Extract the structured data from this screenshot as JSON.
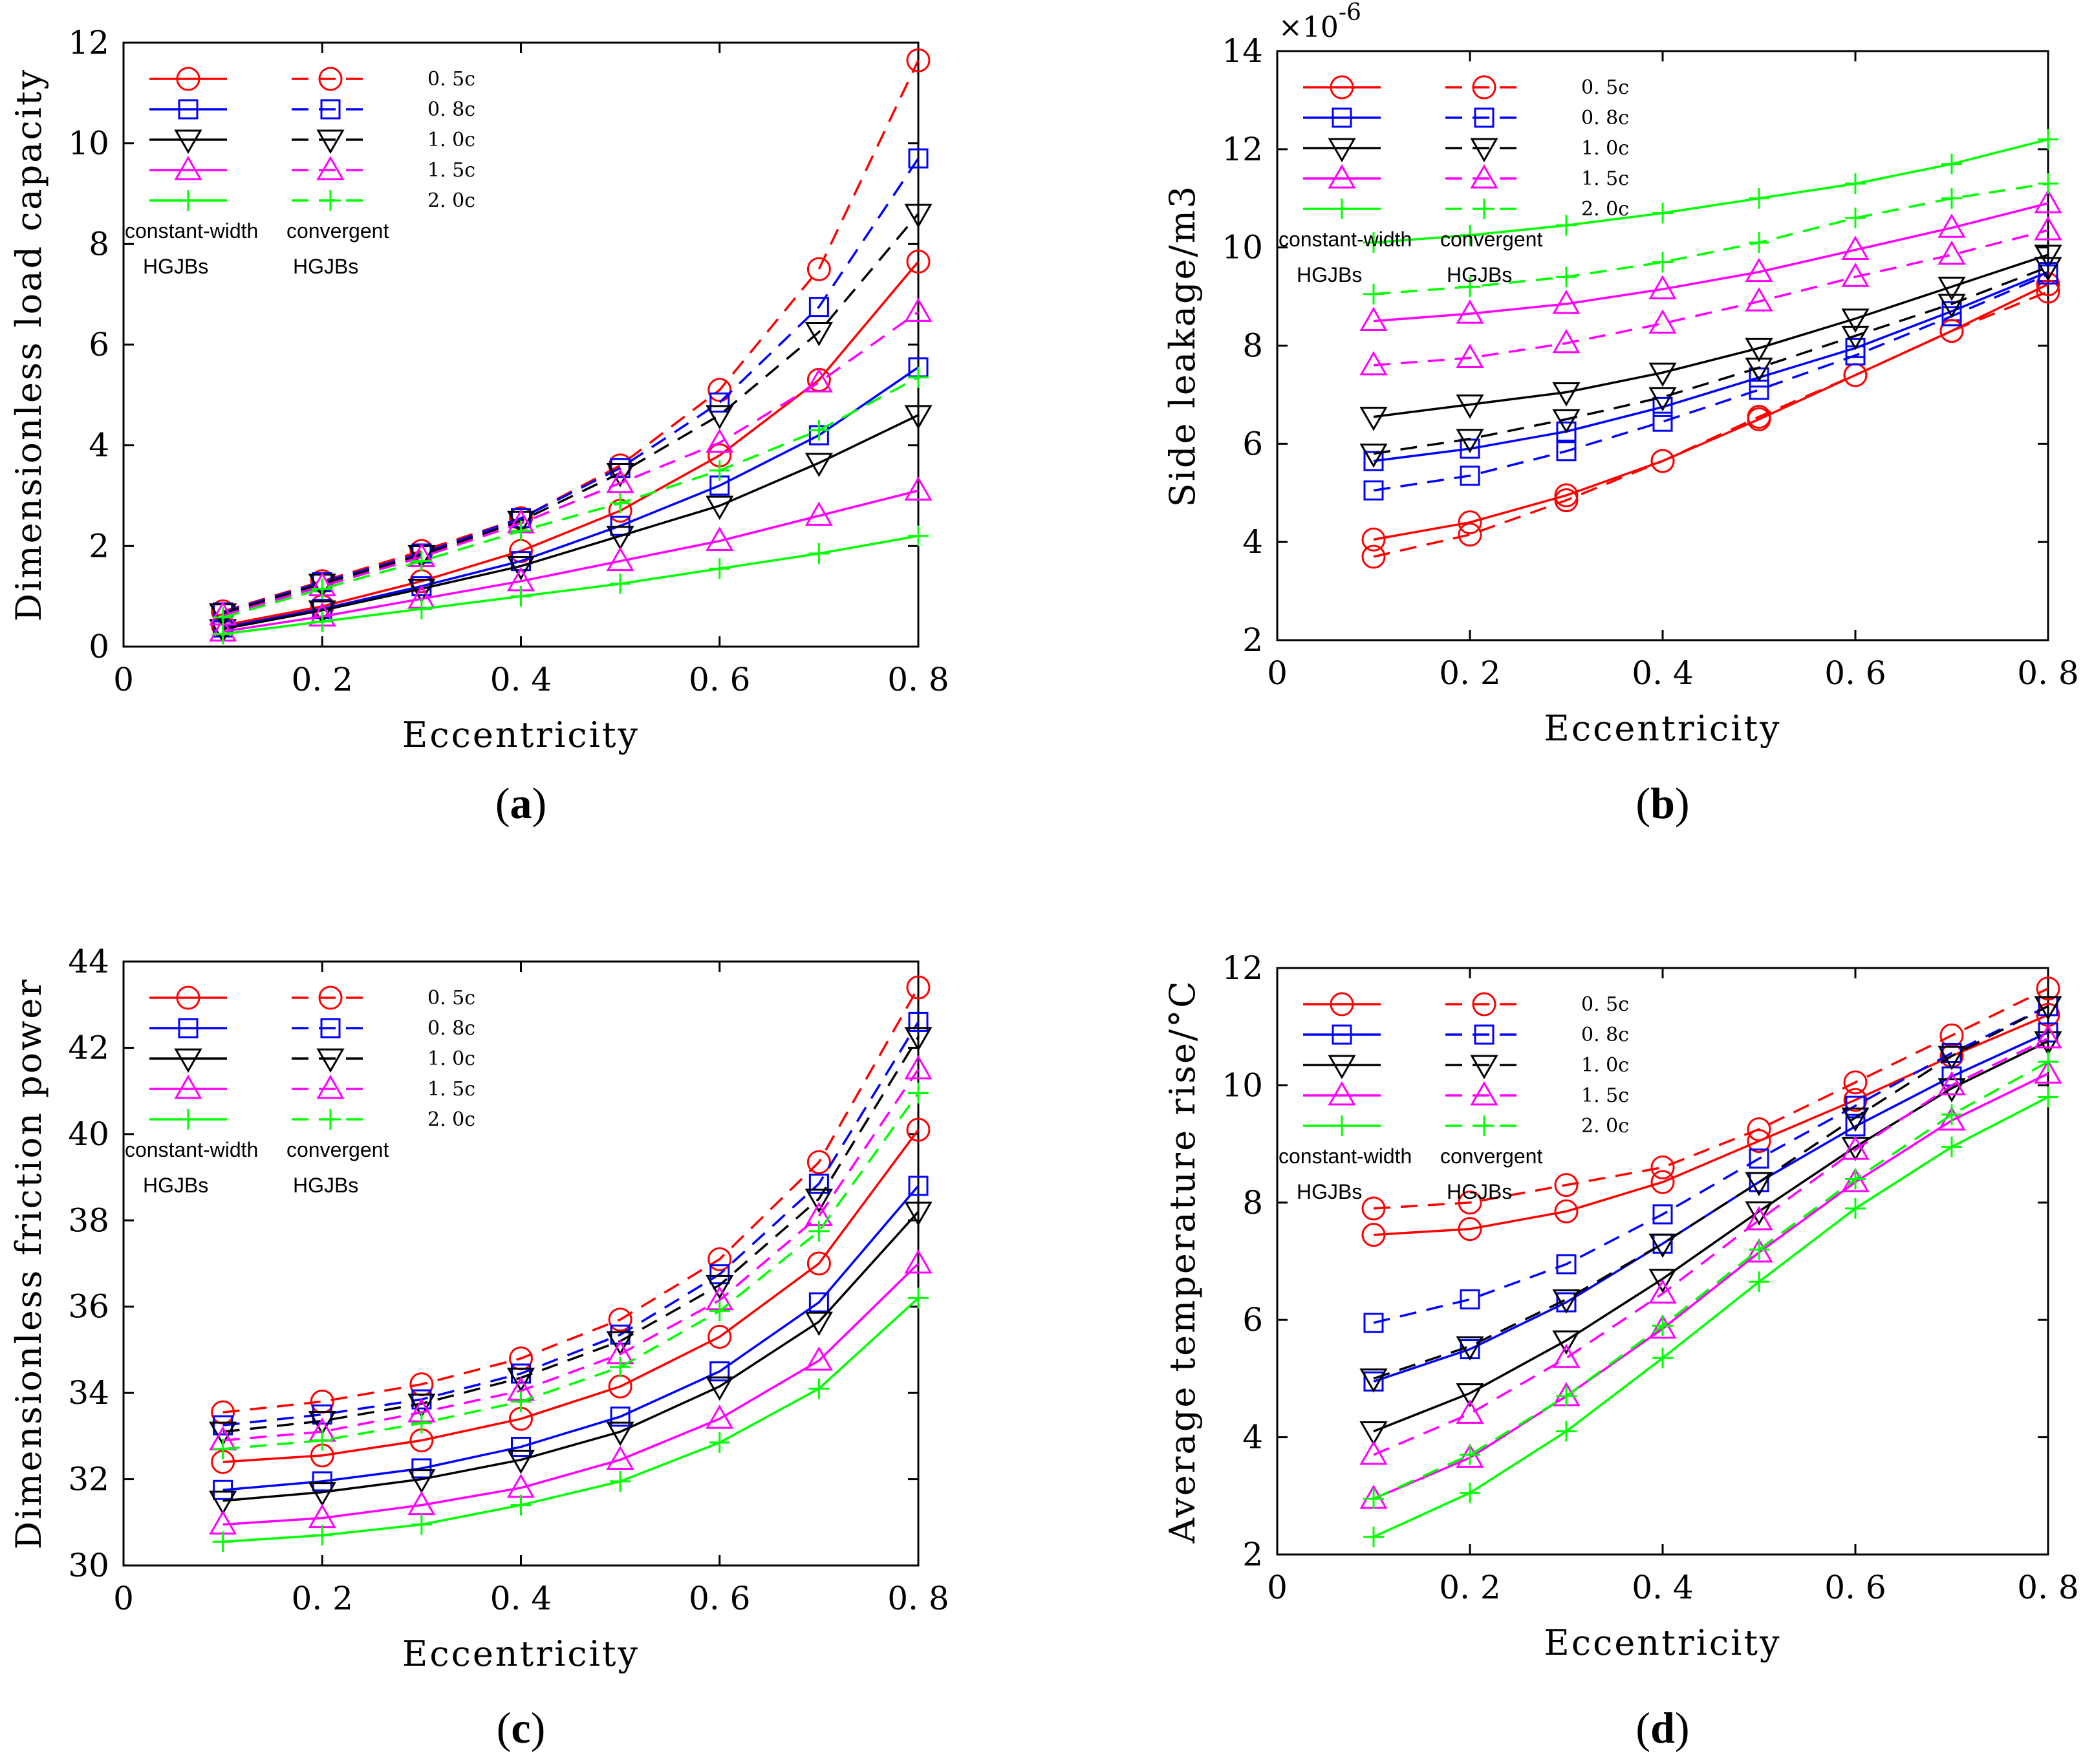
{
  "figure": {
    "legend_labels": [
      "0. 5c",
      "0. 8c",
      "1. 0c",
      "1. 5c",
      "2. 0c"
    ],
    "legend_note": {
      "left_top": "constant-width",
      "right_top": "convergent",
      "left_bottom": "HGJBs",
      "right_bottom": "HGJBs"
    },
    "series_colors": [
      "#ff0000",
      "#0000ff",
      "#000000",
      "#ff00ff",
      "#00ff00"
    ],
    "series_markers": [
      "circle",
      "square",
      "triangle-down",
      "triangle-up",
      "plus"
    ],
    "line_styles": {
      "constant_width": "solid",
      "convergent": "dashed"
    }
  },
  "chart_data": [
    {
      "type": "line",
      "caption": "(a)",
      "caption_letter": "a",
      "xlabel": "Eccentricity",
      "ylabel": "Dimensionless load capacity",
      "xlim": [
        0,
        0.8
      ],
      "ylim": [
        0,
        12
      ],
      "xticks": [
        0,
        0.2,
        0.4,
        0.6,
        0.8
      ],
      "xtick_labels": [
        "0",
        "0. 2",
        "0. 4",
        "0. 6",
        "0. 8"
      ],
      "yticks": [
        0,
        2,
        4,
        6,
        8,
        10,
        12
      ],
      "ytick_labels": [
        "0",
        "2",
        "4",
        "6",
        "8",
        "10",
        "12"
      ],
      "exponent_label": "",
      "x": [
        0.1,
        0.2,
        0.3,
        0.4,
        0.5,
        0.6,
        0.7,
        0.8
      ],
      "series": [
        {
          "name": "0. 5c constant-width",
          "values": [
            0.42,
            0.8,
            1.3,
            1.9,
            2.7,
            3.8,
            5.3,
            7.65
          ]
        },
        {
          "name": "0. 8c constant-width",
          "values": [
            0.38,
            0.75,
            1.2,
            1.7,
            2.4,
            3.2,
            4.2,
            5.55
          ]
        },
        {
          "name": "1. 0c constant-width",
          "values": [
            0.35,
            0.72,
            1.15,
            1.6,
            2.2,
            2.8,
            3.65,
            4.6
          ]
        },
        {
          "name": "1. 5c constant-width",
          "values": [
            0.3,
            0.6,
            0.95,
            1.3,
            1.7,
            2.1,
            2.6,
            3.1
          ]
        },
        {
          "name": "2. 0c constant-width",
          "values": [
            0.25,
            0.5,
            0.75,
            1.0,
            1.25,
            1.55,
            1.85,
            2.2
          ]
        },
        {
          "name": "0. 5c convergent",
          "values": [
            0.7,
            1.3,
            1.9,
            2.55,
            3.6,
            5.1,
            7.5,
            11.65
          ]
        },
        {
          "name": "0. 8c convergent",
          "values": [
            0.68,
            1.28,
            1.85,
            2.55,
            3.55,
            4.85,
            6.75,
            9.7
          ]
        },
        {
          "name": "1. 0c convergent",
          "values": [
            0.66,
            1.25,
            1.82,
            2.5,
            3.45,
            4.6,
            6.25,
            8.6
          ]
        },
        {
          "name": "1. 5c convergent",
          "values": [
            0.62,
            1.2,
            1.78,
            2.45,
            3.25,
            4.05,
            5.25,
            6.65
          ]
        },
        {
          "name": "2. 0c convergent",
          "values": [
            0.58,
            1.15,
            1.7,
            2.3,
            2.85,
            3.5,
            4.3,
            5.35
          ]
        }
      ]
    },
    {
      "type": "line",
      "caption": "(b)",
      "caption_letter": "b",
      "xlabel": "Eccentricity",
      "ylabel": "Side leakage/m3",
      "xlim": [
        0,
        0.8
      ],
      "ylim": [
        2,
        14
      ],
      "xticks": [
        0,
        0.2,
        0.4,
        0.6,
        0.8
      ],
      "xtick_labels": [
        "0",
        "0. 2",
        "0. 4",
        "0. 6",
        "0. 8"
      ],
      "yticks": [
        2,
        4,
        6,
        8,
        10,
        12,
        14
      ],
      "ytick_labels": [
        "2",
        "4",
        "6",
        "8",
        "10",
        "12",
        "14"
      ],
      "exponent_label": "×10",
      "exponent_power": "-6",
      "x": [
        0.1,
        0.2,
        0.3,
        0.4,
        0.5,
        0.6,
        0.7,
        0.8
      ],
      "series": [
        {
          "name": "0. 5c constant-width",
          "values": [
            4.05,
            4.4,
            4.95,
            5.65,
            6.5,
            7.4,
            8.3,
            9.25
          ]
        },
        {
          "name": "0. 8c constant-width",
          "values": [
            5.65,
            5.9,
            6.25,
            6.75,
            7.35,
            7.95,
            8.7,
            9.5
          ]
        },
        {
          "name": "1. 0c constant-width",
          "values": [
            6.55,
            6.8,
            7.05,
            7.45,
            7.95,
            8.55,
            9.2,
            9.85
          ]
        },
        {
          "name": "1. 5c constant-width",
          "values": [
            8.5,
            8.65,
            8.85,
            9.15,
            9.5,
            9.95,
            10.4,
            10.9
          ]
        },
        {
          "name": "2. 0c constant-width",
          "values": [
            10.1,
            10.25,
            10.45,
            10.7,
            11.0,
            11.3,
            11.7,
            12.2
          ]
        },
        {
          "name": "0. 5c convergent",
          "values": [
            3.7,
            4.15,
            4.85,
            5.65,
            6.55,
            7.4,
            8.3,
            9.1
          ]
        },
        {
          "name": "0. 8c convergent",
          "values": [
            5.05,
            5.35,
            5.85,
            6.45,
            7.1,
            7.8,
            8.6,
            9.45
          ]
        },
        {
          "name": "1. 0c convergent",
          "values": [
            5.8,
            6.1,
            6.5,
            6.95,
            7.55,
            8.2,
            8.85,
            9.6
          ]
        },
        {
          "name": "1. 5c convergent",
          "values": [
            7.6,
            7.75,
            8.05,
            8.45,
            8.9,
            9.4,
            9.85,
            10.35
          ]
        },
        {
          "name": "2. 0c convergent",
          "values": [
            9.05,
            9.2,
            9.4,
            9.7,
            10.1,
            10.6,
            11.0,
            11.3
          ]
        }
      ]
    },
    {
      "type": "line",
      "caption": "(c)",
      "caption_letter": "c",
      "xlabel": "Eccentricity",
      "ylabel": "Dimensionless friction power",
      "xlim": [
        0,
        0.8
      ],
      "ylim": [
        30,
        44
      ],
      "xticks": [
        0,
        0.2,
        0.4,
        0.6,
        0.8
      ],
      "xtick_labels": [
        "0",
        "0. 2",
        "0. 4",
        "0. 6",
        "0. 8"
      ],
      "yticks": [
        30,
        32,
        34,
        36,
        38,
        40,
        42,
        44
      ],
      "ytick_labels": [
        "30",
        "32",
        "34",
        "36",
        "38",
        "40",
        "42",
        "44"
      ],
      "exponent_label": "",
      "x": [
        0.1,
        0.2,
        0.3,
        0.4,
        0.5,
        0.6,
        0.7,
        0.8
      ],
      "series": [
        {
          "name": "0. 5c constant-width",
          "values": [
            32.4,
            32.55,
            32.9,
            33.4,
            34.15,
            35.3,
            37.0,
            40.1
          ]
        },
        {
          "name": "0. 8c constant-width",
          "values": [
            31.75,
            31.95,
            32.25,
            32.75,
            33.45,
            34.5,
            36.1,
            38.8
          ]
        },
        {
          "name": "1. 0c constant-width",
          "values": [
            31.5,
            31.7,
            32.0,
            32.45,
            33.1,
            34.15,
            35.65,
            38.2
          ]
        },
        {
          "name": "1. 5c constant-width",
          "values": [
            30.95,
            31.1,
            31.4,
            31.8,
            32.45,
            33.4,
            34.75,
            37.0
          ]
        },
        {
          "name": "2. 0c constant-width",
          "values": [
            30.55,
            30.7,
            30.95,
            31.4,
            31.95,
            32.85,
            34.1,
            36.2
          ]
        },
        {
          "name": "0. 5c convergent",
          "values": [
            33.55,
            33.8,
            34.2,
            34.8,
            35.7,
            37.1,
            39.35,
            43.4
          ]
        },
        {
          "name": "0. 8c convergent",
          "values": [
            33.25,
            33.5,
            33.85,
            34.45,
            35.35,
            36.75,
            38.85,
            42.6
          ]
        },
        {
          "name": "1. 0c convergent",
          "values": [
            33.1,
            33.35,
            33.75,
            34.35,
            35.2,
            36.5,
            38.5,
            42.25
          ]
        },
        {
          "name": "1. 5c convergent",
          "values": [
            32.9,
            33.1,
            33.55,
            34.05,
            34.9,
            36.15,
            38.1,
            41.5
          ]
        },
        {
          "name": "2. 0c convergent",
          "values": [
            32.7,
            32.9,
            33.3,
            33.8,
            34.6,
            35.9,
            37.75,
            40.95
          ]
        }
      ]
    },
    {
      "type": "line",
      "caption": "(d)",
      "caption_letter": "d",
      "xlabel": "Eccentricity",
      "ylabel": "Average temperature rise/°C",
      "xlim": [
        0,
        0.8
      ],
      "ylim": [
        2,
        12
      ],
      "xticks": [
        0,
        0.2,
        0.4,
        0.6,
        0.8
      ],
      "xtick_labels": [
        "0",
        "0. 2",
        "0. 4",
        "0. 6",
        "0. 8"
      ],
      "yticks": [
        2,
        4,
        6,
        8,
        10,
        12
      ],
      "ytick_labels": [
        "2",
        "4",
        "6",
        "8",
        "10",
        "12"
      ],
      "exponent_label": "",
      "x": [
        0.1,
        0.2,
        0.3,
        0.4,
        0.5,
        0.6,
        0.7,
        0.8
      ],
      "series": [
        {
          "name": "0. 5c constant-width",
          "values": [
            7.45,
            7.55,
            7.85,
            8.35,
            9.05,
            9.75,
            10.5,
            11.2
          ]
        },
        {
          "name": "0. 8c constant-width",
          "values": [
            4.95,
            5.5,
            6.3,
            7.3,
            8.35,
            9.3,
            10.15,
            10.9
          ]
        },
        {
          "name": "1. 0c constant-width",
          "values": [
            4.1,
            4.75,
            5.65,
            6.7,
            7.85,
            8.95,
            9.95,
            10.75
          ]
        },
        {
          "name": "1. 5c constant-width",
          "values": [
            2.95,
            3.65,
            4.7,
            5.85,
            7.15,
            8.35,
            9.4,
            10.2
          ]
        },
        {
          "name": "2. 0c constant-width",
          "values": [
            2.3,
            3.05,
            4.1,
            5.35,
            6.65,
            7.9,
            8.95,
            9.8
          ]
        },
        {
          "name": "0. 5c convergent",
          "values": [
            7.9,
            8.0,
            8.3,
            8.6,
            9.25,
            10.05,
            10.85,
            11.65
          ]
        },
        {
          "name": "0. 8c convergent",
          "values": [
            5.95,
            6.35,
            6.95,
            7.8,
            8.75,
            9.65,
            10.55,
            11.35
          ]
        },
        {
          "name": "1. 0c convergent",
          "values": [
            5.0,
            5.55,
            6.35,
            7.3,
            8.35,
            9.45,
            10.5,
            11.35
          ]
        },
        {
          "name": "1. 5c convergent",
          "values": [
            3.7,
            4.4,
            5.35,
            6.45,
            7.7,
            8.9,
            10.0,
            10.8
          ]
        },
        {
          "name": "2. 0c convergent",
          "values": [
            2.95,
            3.7,
            4.7,
            5.9,
            7.2,
            8.4,
            9.5,
            10.4
          ]
        }
      ]
    }
  ]
}
